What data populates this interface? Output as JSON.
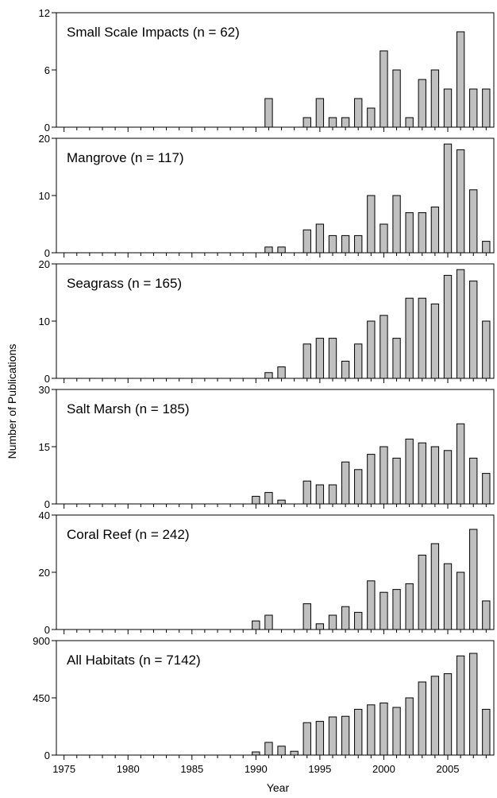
{
  "chart_data": {
    "type": "bar",
    "xlabel": "Year",
    "ylabel": "Number of Publications",
    "x_ticks": [
      1975,
      1980,
      1985,
      1990,
      1995,
      2000,
      2005
    ],
    "xlim": [
      1974.4,
      2008.6
    ],
    "years": [
      1990,
      1991,
      1992,
      1993,
      1994,
      1995,
      1996,
      1997,
      1998,
      1999,
      2000,
      2001,
      2002,
      2003,
      2004,
      2005,
      2006,
      2007,
      2008
    ],
    "bar_color": "#c0c0c0",
    "grid": false,
    "panels": [
      {
        "title": "Small Scale Impacts (n = 62)",
        "ylim": [
          0,
          12
        ],
        "yticks": [
          0,
          6,
          12
        ],
        "values": [
          0,
          3,
          0,
          0,
          1,
          3,
          1,
          1,
          3,
          2,
          8,
          6,
          1,
          5,
          6,
          4,
          10,
          4,
          4
        ]
      },
      {
        "title": "Mangrove (n = 117)",
        "ylim": [
          0,
          20
        ],
        "yticks": [
          0,
          10,
          20
        ],
        "values": [
          0,
          1,
          1,
          0,
          4,
          5,
          3,
          3,
          3,
          10,
          5,
          10,
          7,
          7,
          8,
          19,
          18,
          11,
          2
        ]
      },
      {
        "title": "Seagrass (n = 165)",
        "ylim": [
          0,
          20
        ],
        "yticks": [
          0,
          10,
          20
        ],
        "values": [
          0,
          1,
          2,
          0,
          6,
          7,
          7,
          3,
          6,
          10,
          11,
          7,
          14,
          14,
          13,
          18,
          19,
          17,
          10
        ]
      },
      {
        "title": "Salt Marsh (n = 185)",
        "ylim": [
          0,
          30
        ],
        "yticks": [
          0,
          15,
          30
        ],
        "values": [
          2,
          3,
          1,
          0,
          6,
          5,
          5,
          11,
          9,
          13,
          15,
          12,
          17,
          16,
          15,
          14,
          21,
          12,
          8
        ]
      },
      {
        "title": "Coral Reef (n = 242)",
        "ylim": [
          0,
          40
        ],
        "yticks": [
          0,
          20,
          40
        ],
        "values": [
          3,
          5,
          0,
          0,
          9,
          2,
          5,
          8,
          6,
          17,
          13,
          14,
          16,
          26,
          30,
          23,
          20,
          35,
          10
        ]
      },
      {
        "title": "All Habitats (n = 7142)",
        "ylim": [
          0,
          900
        ],
        "yticks": [
          0,
          450,
          900
        ],
        "values": [
          25,
          100,
          70,
          30,
          255,
          265,
          300,
          305,
          360,
          395,
          410,
          375,
          450,
          575,
          620,
          640,
          780,
          800,
          360
        ]
      }
    ]
  }
}
